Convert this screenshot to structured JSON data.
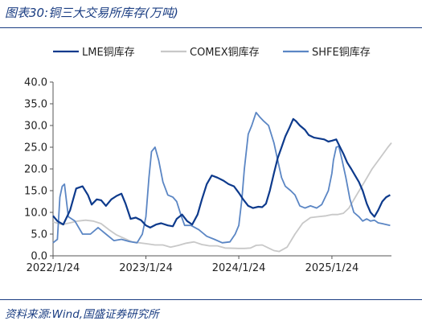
{
  "figure": {
    "title": "图表30:铜三大交易所库存(万吨)",
    "source": "资料来源:Wind,国盛证券研究所"
  },
  "colors": {
    "lme": "#0d3a8c",
    "comex": "#c8c8c8",
    "shfe": "#5b86c4",
    "frame": "#1a3d82",
    "axis": "#555555",
    "text": "#222222"
  },
  "chart_data": {
    "type": "line",
    "xlabel": "",
    "ylabel": "",
    "ylim": [
      0,
      40
    ],
    "yticks": [
      0,
      5,
      10,
      15,
      20,
      25,
      30,
      35,
      40
    ],
    "ytick_labels": [
      "0.0",
      "5.0",
      "10.0",
      "15.0",
      "20.0",
      "25.0",
      "30.0",
      "35.0",
      "40.0"
    ],
    "xlim": [
      "2022-01-24",
      "2025-09-15"
    ],
    "xticks": [
      "2022-01-24",
      "2023-01-24",
      "2024-01-24",
      "2025-01-24"
    ],
    "xtick_labels": [
      "2022/1/24",
      "2023/1/24",
      "2024/1/24",
      "2025/1/24"
    ],
    "grid": false,
    "legend_position": "top",
    "series": [
      {
        "name": "LME铜库存",
        "color_key": "lme",
        "points": [
          [
            "2022-01-24",
            9.2
          ],
          [
            "2022-02-10",
            8.0
          ],
          [
            "2022-03-05",
            7.2
          ],
          [
            "2022-04-01",
            10.5
          ],
          [
            "2022-04-25",
            15.5
          ],
          [
            "2022-05-20",
            16.0
          ],
          [
            "2022-06-10",
            14.0
          ],
          [
            "2022-06-25",
            11.8
          ],
          [
            "2022-07-15",
            13.0
          ],
          [
            "2022-08-01",
            12.8
          ],
          [
            "2022-08-20",
            11.5
          ],
          [
            "2022-09-10",
            13.0
          ],
          [
            "2022-10-01",
            13.8
          ],
          [
            "2022-10-20",
            14.3
          ],
          [
            "2022-11-05",
            12.0
          ],
          [
            "2022-11-25",
            8.5
          ],
          [
            "2022-12-15",
            8.8
          ],
          [
            "2023-01-05",
            8.2
          ],
          [
            "2023-01-24",
            7.0
          ],
          [
            "2023-02-10",
            6.5
          ],
          [
            "2023-03-05",
            7.2
          ],
          [
            "2023-03-25",
            7.5
          ],
          [
            "2023-04-20",
            7.0
          ],
          [
            "2023-05-10",
            6.8
          ],
          [
            "2023-05-25",
            8.5
          ],
          [
            "2023-06-15",
            9.5
          ],
          [
            "2023-07-05",
            8.0
          ],
          [
            "2023-07-25",
            7.2
          ],
          [
            "2023-08-15",
            9.5
          ],
          [
            "2023-09-01",
            13.0
          ],
          [
            "2023-09-20",
            16.5
          ],
          [
            "2023-10-10",
            18.5
          ],
          [
            "2023-11-01",
            18.0
          ],
          [
            "2023-11-25",
            17.3
          ],
          [
            "2023-12-15",
            16.5
          ],
          [
            "2024-01-05",
            16.0
          ],
          [
            "2024-01-24",
            14.5
          ],
          [
            "2024-02-10",
            13.0
          ],
          [
            "2024-03-01",
            11.5
          ],
          [
            "2024-03-20",
            11.0
          ],
          [
            "2024-04-10",
            11.3
          ],
          [
            "2024-04-25",
            11.2
          ],
          [
            "2024-05-10",
            12.0
          ],
          [
            "2024-05-25",
            15.0
          ],
          [
            "2024-06-10",
            19.0
          ],
          [
            "2024-06-25",
            22.5
          ],
          [
            "2024-07-10",
            25.0
          ],
          [
            "2024-07-25",
            27.5
          ],
          [
            "2024-08-10",
            29.5
          ],
          [
            "2024-08-25",
            31.5
          ],
          [
            "2024-09-05",
            31.0
          ],
          [
            "2024-09-20",
            30.0
          ],
          [
            "2024-10-10",
            29.0
          ],
          [
            "2024-10-25",
            27.8
          ],
          [
            "2024-11-15",
            27.2
          ],
          [
            "2024-12-05",
            27.0
          ],
          [
            "2024-12-25",
            26.8
          ],
          [
            "2025-01-10",
            26.3
          ],
          [
            "2025-01-24",
            26.5
          ],
          [
            "2025-02-10",
            26.8
          ],
          [
            "2025-02-25",
            25.0
          ],
          [
            "2025-03-10",
            23.5
          ],
          [
            "2025-03-25",
            21.5
          ],
          [
            "2025-04-10",
            20.0
          ],
          [
            "2025-04-25",
            18.5
          ],
          [
            "2025-05-10",
            17.0
          ],
          [
            "2025-05-25",
            15.0
          ],
          [
            "2025-06-10",
            12.0
          ],
          [
            "2025-06-25",
            10.0
          ],
          [
            "2025-07-10",
            9.0
          ],
          [
            "2025-07-25",
            10.5
          ],
          [
            "2025-08-10",
            12.5
          ],
          [
            "2025-08-25",
            13.5
          ],
          [
            "2025-09-10",
            14.0
          ]
        ]
      },
      {
        "name": "COMEX铜库存",
        "color_key": "comex",
        "points": [
          [
            "2022-01-24",
            7.8
          ],
          [
            "2022-03-01",
            7.2
          ],
          [
            "2022-04-01",
            7.6
          ],
          [
            "2022-05-01",
            8.0
          ],
          [
            "2022-06-01",
            8.2
          ],
          [
            "2022-07-01",
            8.0
          ],
          [
            "2022-08-01",
            7.4
          ],
          [
            "2022-09-01",
            6.0
          ],
          [
            "2022-10-01",
            4.8
          ],
          [
            "2022-11-01",
            4.0
          ],
          [
            "2022-12-01",
            3.2
          ],
          [
            "2023-01-24",
            2.8
          ],
          [
            "2023-03-01",
            2.5
          ],
          [
            "2023-04-01",
            2.5
          ],
          [
            "2023-05-01",
            2.0
          ],
          [
            "2023-06-01",
            2.4
          ],
          [
            "2023-07-01",
            2.9
          ],
          [
            "2023-08-01",
            3.2
          ],
          [
            "2023-09-01",
            2.6
          ],
          [
            "2023-10-01",
            2.3
          ],
          [
            "2023-11-01",
            2.3
          ],
          [
            "2023-12-01",
            1.8
          ],
          [
            "2024-01-24",
            1.7
          ],
          [
            "2024-02-15",
            1.7
          ],
          [
            "2024-03-10",
            1.8
          ],
          [
            "2024-04-01",
            2.4
          ],
          [
            "2024-04-25",
            2.5
          ],
          [
            "2024-05-20",
            1.8
          ],
          [
            "2024-06-10",
            1.2
          ],
          [
            "2024-07-01",
            1.0
          ],
          [
            "2024-08-01",
            2.0
          ],
          [
            "2024-09-01",
            5.0
          ],
          [
            "2024-10-01",
            7.5
          ],
          [
            "2024-11-01",
            8.8
          ],
          [
            "2024-12-01",
            9.0
          ],
          [
            "2025-01-01",
            9.2
          ],
          [
            "2025-01-24",
            9.5
          ],
          [
            "2025-02-15",
            9.5
          ],
          [
            "2025-03-10",
            9.8
          ],
          [
            "2025-04-01",
            11.0
          ],
          [
            "2025-05-01",
            14.0
          ],
          [
            "2025-06-01",
            17.0
          ],
          [
            "2025-07-01",
            20.0
          ],
          [
            "2025-08-01",
            22.5
          ],
          [
            "2025-09-01",
            25.0
          ],
          [
            "2025-09-15",
            26.0
          ]
        ]
      },
      {
        "name": "SHFE铜库存",
        "color_key": "shfe",
        "points": [
          [
            "2022-01-24",
            3.0
          ],
          [
            "2022-02-10",
            3.8
          ],
          [
            "2022-02-20",
            13.5
          ],
          [
            "2022-03-01",
            16.0
          ],
          [
            "2022-03-10",
            16.5
          ],
          [
            "2022-03-25",
            9.0
          ],
          [
            "2022-04-20",
            8.0
          ],
          [
            "2022-05-20",
            5.0
          ],
          [
            "2022-06-20",
            5.0
          ],
          [
            "2022-07-20",
            6.5
          ],
          [
            "2022-08-20",
            5.0
          ],
          [
            "2022-09-20",
            3.5
          ],
          [
            "2022-10-20",
            3.8
          ],
          [
            "2022-11-20",
            3.3
          ],
          [
            "2022-12-20",
            3.0
          ],
          [
            "2023-01-10",
            5.0
          ],
          [
            "2023-01-24",
            9.0
          ],
          [
            "2023-02-05",
            18.0
          ],
          [
            "2023-02-15",
            24.0
          ],
          [
            "2023-03-01",
            25.0
          ],
          [
            "2023-03-15",
            22.0
          ],
          [
            "2023-04-01",
            17.0
          ],
          [
            "2023-04-20",
            14.0
          ],
          [
            "2023-05-10",
            13.5
          ],
          [
            "2023-05-25",
            12.5
          ],
          [
            "2023-06-10",
            9.5
          ],
          [
            "2023-06-25",
            7.0
          ],
          [
            "2023-07-20",
            7.0
          ],
          [
            "2023-08-20",
            6.0
          ],
          [
            "2023-09-20",
            4.5
          ],
          [
            "2023-10-20",
            3.8
          ],
          [
            "2023-11-20",
            3.0
          ],
          [
            "2023-12-20",
            3.2
          ],
          [
            "2024-01-10",
            5.0
          ],
          [
            "2024-01-24",
            7.0
          ],
          [
            "2024-02-05",
            13.0
          ],
          [
            "2024-02-15",
            20.0
          ],
          [
            "2024-03-01",
            28.0
          ],
          [
            "2024-03-15",
            30.0
          ],
          [
            "2024-04-01",
            33.0
          ],
          [
            "2024-04-15",
            32.0
          ],
          [
            "2024-05-01",
            31.0
          ],
          [
            "2024-05-20",
            30.0
          ],
          [
            "2024-06-10",
            26.0
          ],
          [
            "2024-06-25",
            22.0
          ],
          [
            "2024-07-10",
            18.0
          ],
          [
            "2024-07-25",
            16.0
          ],
          [
            "2024-08-15",
            15.0
          ],
          [
            "2024-09-01",
            14.0
          ],
          [
            "2024-09-20",
            11.5
          ],
          [
            "2024-10-10",
            11.0
          ],
          [
            "2024-11-01",
            11.5
          ],
          [
            "2024-11-25",
            11.0
          ],
          [
            "2024-12-15",
            11.8
          ],
          [
            "2025-01-10",
            15.0
          ],
          [
            "2025-01-24",
            19.0
          ],
          [
            "2025-01-30",
            22.0
          ],
          [
            "2025-02-10",
            25.0
          ],
          [
            "2025-02-20",
            25.2
          ],
          [
            "2025-03-05",
            22.0
          ],
          [
            "2025-03-20",
            18.0
          ],
          [
            "2025-04-05",
            13.0
          ],
          [
            "2025-04-20",
            10.0
          ],
          [
            "2025-05-10",
            9.0
          ],
          [
            "2025-05-25",
            8.0
          ],
          [
            "2025-06-10",
            8.5
          ],
          [
            "2025-06-25",
            8.0
          ],
          [
            "2025-07-10",
            8.2
          ],
          [
            "2025-07-25",
            7.6
          ],
          [
            "2025-08-10",
            7.4
          ],
          [
            "2025-08-25",
            7.2
          ],
          [
            "2025-09-10",
            7.0
          ]
        ]
      }
    ]
  }
}
